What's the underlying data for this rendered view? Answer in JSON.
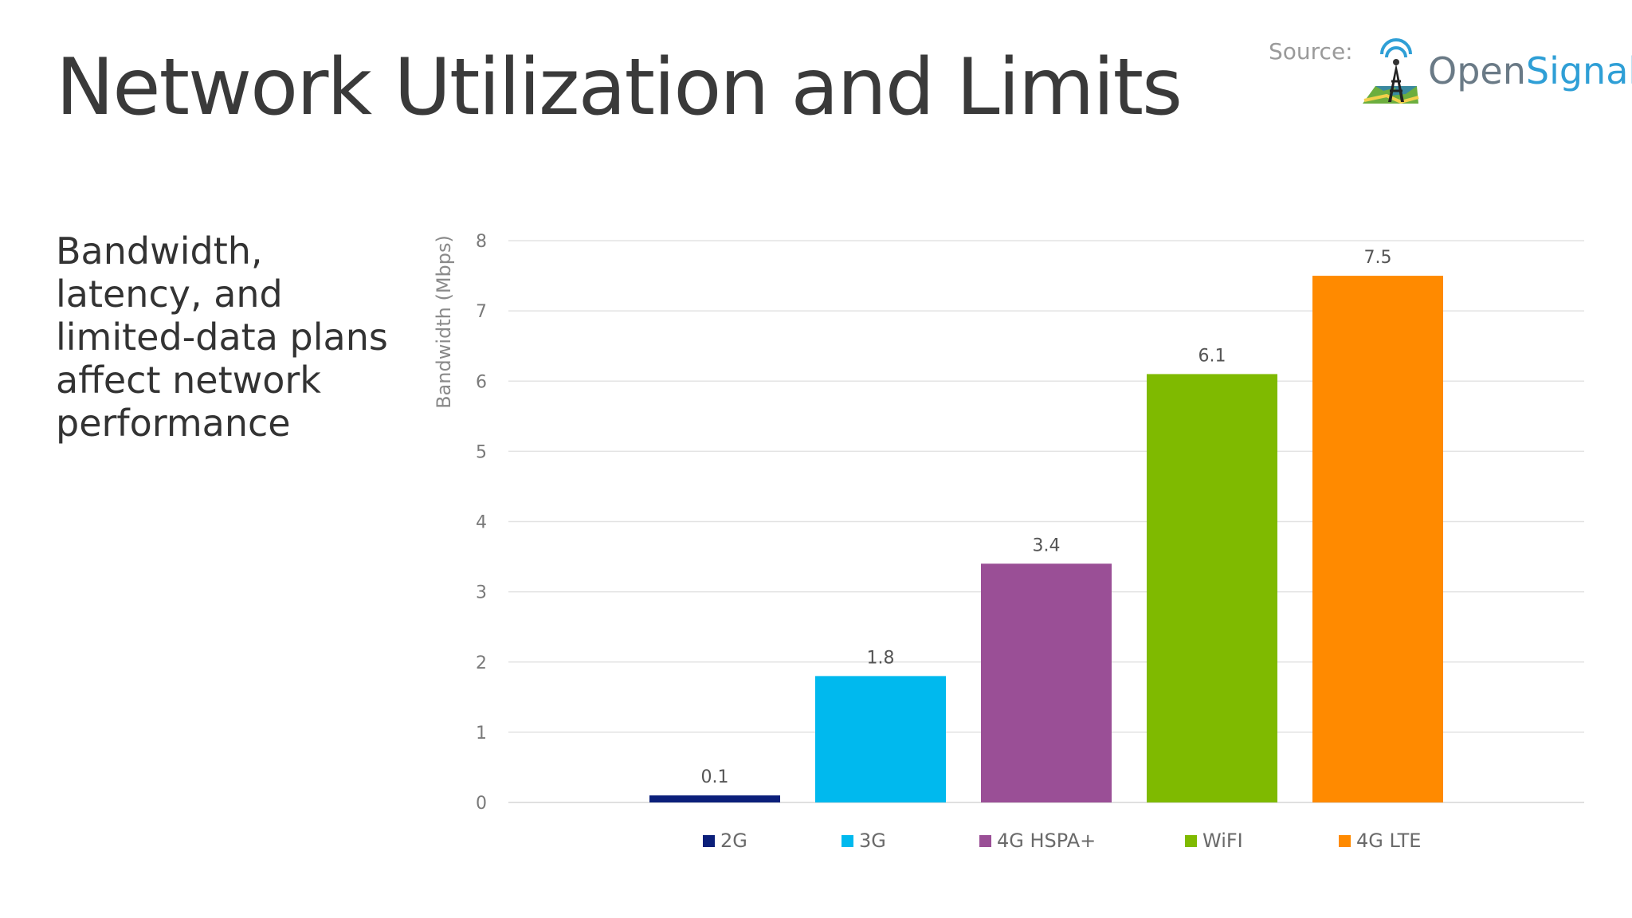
{
  "slide": {
    "title": "Network Utilization and Limits",
    "subtitle": "Bandwidth, latency, and limited-data plans affect network performance",
    "source_label": "Source:",
    "logo_text_part1": "Open",
    "logo_text_part2": "Signal",
    "logo_name": "opensignal-tower-icon"
  },
  "chart_data": {
    "type": "bar",
    "title": "",
    "xlabel": "",
    "ylabel": "Bandwidth  (Mbps)",
    "ylim": [
      0,
      8
    ],
    "yticks": [
      0,
      1,
      2,
      3,
      4,
      5,
      6,
      7,
      8
    ],
    "grid": true,
    "legend": "bottom",
    "series": [
      {
        "name": "2G",
        "value": 0.1,
        "label": "0.1",
        "color": "#0b1f7a"
      },
      {
        "name": "3G",
        "value": 1.8,
        "label": "1.8",
        "color": "#00b9ee"
      },
      {
        "name": "4G HSPA+",
        "value": 3.4,
        "label": "3.4",
        "color": "#9a4f96"
      },
      {
        "name": "WiFI",
        "value": 6.1,
        "label": "6.1",
        "color": "#7fba00"
      },
      {
        "name": "4G LTE",
        "value": 7.5,
        "label": "7.5",
        "color": "#ff8a00"
      }
    ]
  }
}
